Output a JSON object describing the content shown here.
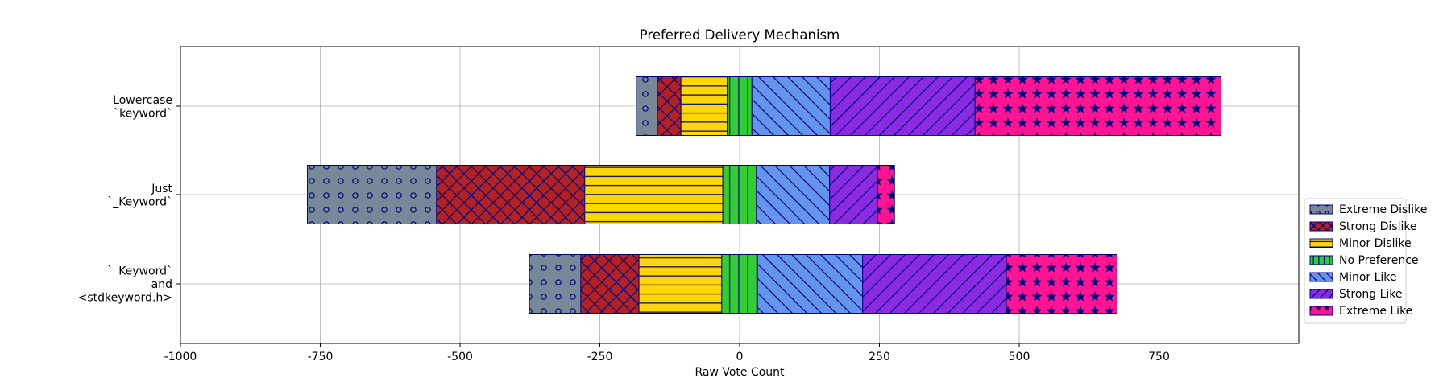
{
  "chart_data": {
    "type": "bar",
    "orientation": "horizontal",
    "stacked": "diverging",
    "title": "Preferred Delivery Mechanism",
    "xlabel": "Raw Vote Count",
    "ylabel": "",
    "xlim": [
      -1000,
      1000
    ],
    "xticks": [
      -1000,
      -750,
      -500,
      -250,
      0,
      250,
      500,
      750
    ],
    "xtick_labels": [
      "-1000",
      "-750",
      "-500",
      "-250",
      "0",
      "250",
      "500",
      "750"
    ],
    "grid": true,
    "legend_position": "right",
    "categories": [
      [
        "Lowercase",
        "`keyword`"
      ],
      [
        "Just",
        "`_Keyword`"
      ],
      [
        "`_Keyword`",
        "and",
        "<stdkeyword.h>"
      ]
    ],
    "series": [
      {
        "name": "Extreme Dislike",
        "side": "negative",
        "color": "#778899",
        "hatch": "circles",
        "values": [
          38,
          231,
          92
        ]
      },
      {
        "name": "Strong Dislike",
        "side": "negative",
        "color": "#B22222",
        "hatch": "crosshatch",
        "values": [
          42,
          265,
          104
        ]
      },
      {
        "name": "Minor Dislike",
        "side": "negative",
        "color": "#FFD700",
        "hatch": "horizontal",
        "values": [
          83,
          247,
          148
        ]
      },
      {
        "name": "No Preference",
        "side": "center",
        "color": "#32CD32",
        "hatch": "vertical",
        "values": [
          44,
          60,
          64
        ]
      },
      {
        "name": "Minor Like",
        "side": "positive",
        "color": "#6495ED",
        "hatch": "backslash",
        "values": [
          140,
          131,
          188
        ]
      },
      {
        "name": "Strong Like",
        "side": "positive",
        "color": "#8A2BE2",
        "hatch": "slash",
        "values": [
          259,
          86,
          257
        ]
      },
      {
        "name": "Extreme Like",
        "side": "positive",
        "color": "#FF1493",
        "hatch": "stars",
        "values": [
          440,
          30,
          198
        ]
      }
    ],
    "edge_color": "#000080"
  }
}
